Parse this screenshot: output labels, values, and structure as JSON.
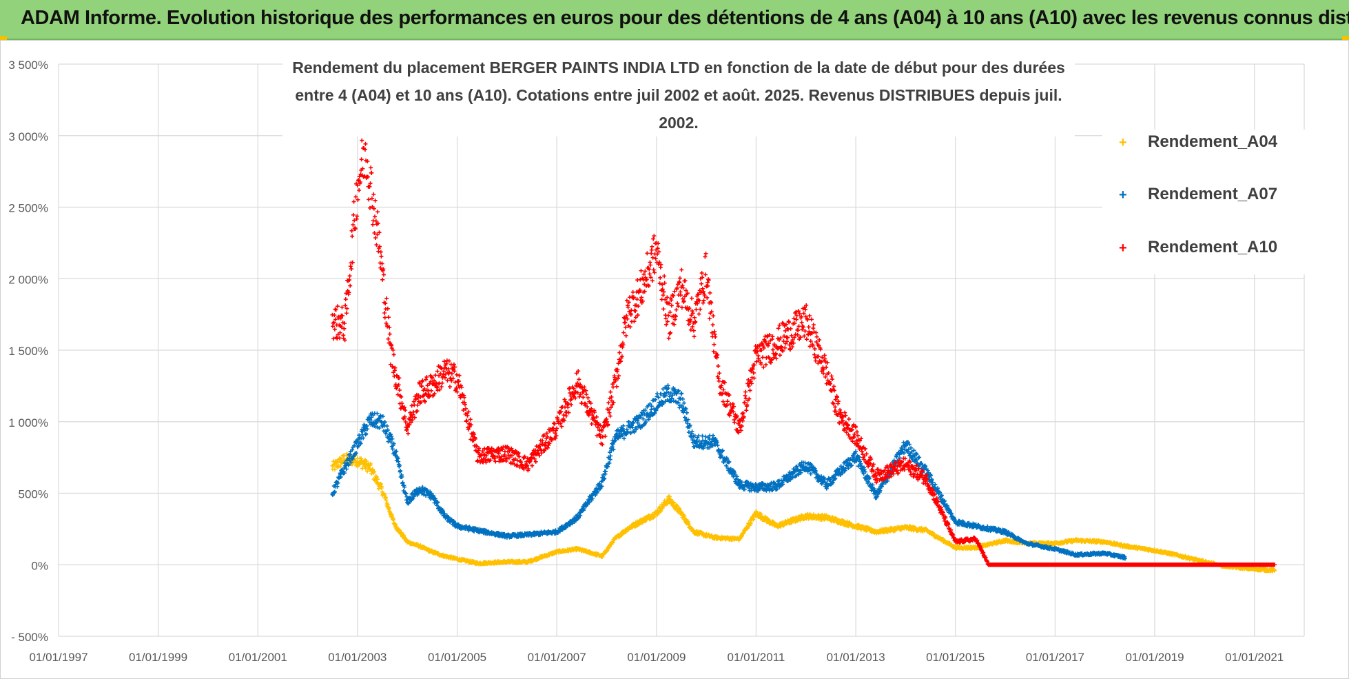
{
  "banner": {
    "title": "ADAM Informe. Evolution historique des performances en euros pour des détentions de 4 ans (A04) à 10 ans (A10) avec les revenus connus distribués"
  },
  "colors": {
    "banner_bg": "#92d27a",
    "A04": "#ffc000",
    "A07": "#0070c0",
    "A10": "#ff0000",
    "grid": "#d9d9d9",
    "text": "#404040"
  },
  "chart_data": {
    "type": "scatter",
    "title_lines": [
      "Rendement du placement BERGER PAINTS INDIA LTD en fonction de la date de début pour des durées",
      "entre 4 (A04) et 10 ans (A10).  Cotations entre juil 2002 et août. 2025.  Revenus DISTRIBUES depuis juil. 2002."
    ],
    "xlabel": "",
    "ylabel": "",
    "x_range": [
      "1997-01-01",
      "2022-01-01"
    ],
    "ylim": [
      -500,
      3500
    ],
    "y_ticks": [
      -500,
      0,
      500,
      1000,
      1500,
      2000,
      2500,
      3000,
      3500
    ],
    "y_tick_labels": [
      "- 500%",
      "0%",
      "500%",
      "1 000%",
      "1 500%",
      "2 000%",
      "2 500%",
      "3 000%",
      "3 500%"
    ],
    "x_ticks": [
      "1997-01-01",
      "1999-01-01",
      "2001-01-01",
      "2003-01-01",
      "2005-01-01",
      "2007-01-01",
      "2009-01-01",
      "2011-01-01",
      "2013-01-01",
      "2015-01-01",
      "2017-01-01",
      "2019-01-01",
      "2021-01-01"
    ],
    "x_tick_labels": [
      "01/01/1997",
      "01/01/1999",
      "01/01/2001",
      "01/01/2003",
      "01/01/2005",
      "01/01/2007",
      "01/01/2009",
      "01/01/2011",
      "01/01/2013",
      "01/01/2015",
      "01/01/2017",
      "01/01/2019",
      "01/01/2021"
    ],
    "grid": true,
    "legend_position": "top-right",
    "marker": "+",
    "series": [
      {
        "name": "Rendement_A04",
        "points": [
          [
            "2002-07-01",
            680
          ],
          [
            "2002-10-01",
            740
          ],
          [
            "2003-01-01",
            730
          ],
          [
            "2003-04-01",
            680
          ],
          [
            "2003-07-01",
            520
          ],
          [
            "2003-10-01",
            280
          ],
          [
            "2004-01-01",
            160
          ],
          [
            "2004-04-01",
            130
          ],
          [
            "2004-07-01",
            90
          ],
          [
            "2004-10-01",
            60
          ],
          [
            "2005-01-01",
            40
          ],
          [
            "2005-06-01",
            10
          ],
          [
            "2006-01-01",
            20
          ],
          [
            "2006-06-01",
            20
          ],
          [
            "2007-01-01",
            90
          ],
          [
            "2007-06-01",
            110
          ],
          [
            "2007-12-01",
            60
          ],
          [
            "2008-03-01",
            180
          ],
          [
            "2008-06-01",
            250
          ],
          [
            "2008-09-01",
            300
          ],
          [
            "2009-01-01",
            360
          ],
          [
            "2009-04-01",
            460
          ],
          [
            "2009-07-01",
            360
          ],
          [
            "2009-10-01",
            230
          ],
          [
            "2010-03-01",
            190
          ],
          [
            "2010-09-01",
            180
          ],
          [
            "2011-01-01",
            360
          ],
          [
            "2011-06-01",
            270
          ],
          [
            "2012-01-01",
            340
          ],
          [
            "2012-06-01",
            330
          ],
          [
            "2013-01-01",
            270
          ],
          [
            "2013-06-01",
            230
          ],
          [
            "2014-01-01",
            260
          ],
          [
            "2014-06-01",
            240
          ],
          [
            "2015-01-01",
            120
          ],
          [
            "2015-06-01",
            120
          ],
          [
            "2016-01-01",
            170
          ],
          [
            "2016-06-01",
            150
          ],
          [
            "2017-01-01",
            150
          ],
          [
            "2017-06-01",
            170
          ],
          [
            "2018-01-01",
            160
          ],
          [
            "2018-06-01",
            130
          ],
          [
            "2019-01-01",
            100
          ],
          [
            "2019-06-01",
            70
          ],
          [
            "2020-01-01",
            20
          ],
          [
            "2020-06-01",
            -10
          ],
          [
            "2021-01-01",
            -30
          ],
          [
            "2021-06-01",
            -40
          ]
        ]
      },
      {
        "name": "Rendement_A07",
        "points": [
          [
            "2002-07-01",
            500
          ],
          [
            "2002-10-01",
            680
          ],
          [
            "2003-01-01",
            840
          ],
          [
            "2003-04-01",
            1010
          ],
          [
            "2003-07-01",
            1000
          ],
          [
            "2003-10-01",
            800
          ],
          [
            "2004-01-01",
            440
          ],
          [
            "2004-04-01",
            530
          ],
          [
            "2004-07-01",
            480
          ],
          [
            "2004-10-01",
            340
          ],
          [
            "2005-01-01",
            270
          ],
          [
            "2005-06-01",
            240
          ],
          [
            "2006-01-01",
            200
          ],
          [
            "2006-06-01",
            210
          ],
          [
            "2007-01-01",
            230
          ],
          [
            "2007-06-01",
            330
          ],
          [
            "2007-12-01",
            580
          ],
          [
            "2008-03-01",
            880
          ],
          [
            "2008-06-01",
            950
          ],
          [
            "2008-09-01",
            1000
          ],
          [
            "2009-01-01",
            1130
          ],
          [
            "2009-04-01",
            1200
          ],
          [
            "2009-07-01",
            1150
          ],
          [
            "2009-10-01",
            860
          ],
          [
            "2010-03-01",
            860
          ],
          [
            "2010-09-01",
            560
          ],
          [
            "2011-01-01",
            540
          ],
          [
            "2011-06-01",
            550
          ],
          [
            "2012-01-01",
            700
          ],
          [
            "2012-06-01",
            560
          ],
          [
            "2013-01-01",
            760
          ],
          [
            "2013-06-01",
            480
          ],
          [
            "2014-01-01",
            840
          ],
          [
            "2014-06-01",
            650
          ],
          [
            "2015-01-01",
            300
          ],
          [
            "2015-06-01",
            270
          ],
          [
            "2016-01-01",
            230
          ],
          [
            "2016-06-01",
            150
          ],
          [
            "2017-01-01",
            110
          ],
          [
            "2017-06-01",
            70
          ],
          [
            "2018-01-01",
            80
          ],
          [
            "2018-06-01",
            50
          ]
        ]
      },
      {
        "name": "Rendement_A10",
        "points": [
          [
            "2002-07-01",
            1700
          ],
          [
            "2002-10-01",
            1680
          ],
          [
            "2003-01-01",
            2650
          ],
          [
            "2003-03-01",
            2900
          ],
          [
            "2003-06-01",
            2300
          ],
          [
            "2003-09-01",
            1500
          ],
          [
            "2004-01-01",
            960
          ],
          [
            "2004-04-01",
            1200
          ],
          [
            "2004-07-01",
            1250
          ],
          [
            "2004-10-01",
            1350
          ],
          [
            "2005-01-01",
            1300
          ],
          [
            "2005-06-01",
            760
          ],
          [
            "2006-01-01",
            780
          ],
          [
            "2006-06-01",
            700
          ],
          [
            "2007-01-01",
            960
          ],
          [
            "2007-06-01",
            1280
          ],
          [
            "2007-12-01",
            880
          ],
          [
            "2008-03-01",
            1250
          ],
          [
            "2008-06-01",
            1750
          ],
          [
            "2008-09-01",
            1900
          ],
          [
            "2009-01-01",
            2200
          ],
          [
            "2009-04-01",
            1700
          ],
          [
            "2009-07-01",
            1950
          ],
          [
            "2009-10-01",
            1700
          ],
          [
            "2010-01-01",
            2050
          ],
          [
            "2010-04-01",
            1300
          ],
          [
            "2010-09-01",
            950
          ],
          [
            "2011-01-01",
            1450
          ],
          [
            "2011-06-01",
            1550
          ],
          [
            "2012-01-01",
            1700
          ],
          [
            "2012-06-01",
            1350
          ],
          [
            "2012-09-01",
            1050
          ],
          [
            "2013-01-01",
            900
          ],
          [
            "2013-06-01",
            620
          ],
          [
            "2014-01-01",
            700
          ],
          [
            "2014-06-01",
            600
          ],
          [
            "2015-01-01",
            160
          ],
          [
            "2015-06-01",
            180
          ],
          [
            "2015-09-01",
            0
          ],
          [
            "2016-06-01",
            0
          ],
          [
            "2017-06-01",
            0
          ],
          [
            "2018-06-01",
            0
          ],
          [
            "2019-06-01",
            0
          ],
          [
            "2020-06-01",
            0
          ],
          [
            "2021-06-01",
            0
          ]
        ]
      }
    ]
  }
}
